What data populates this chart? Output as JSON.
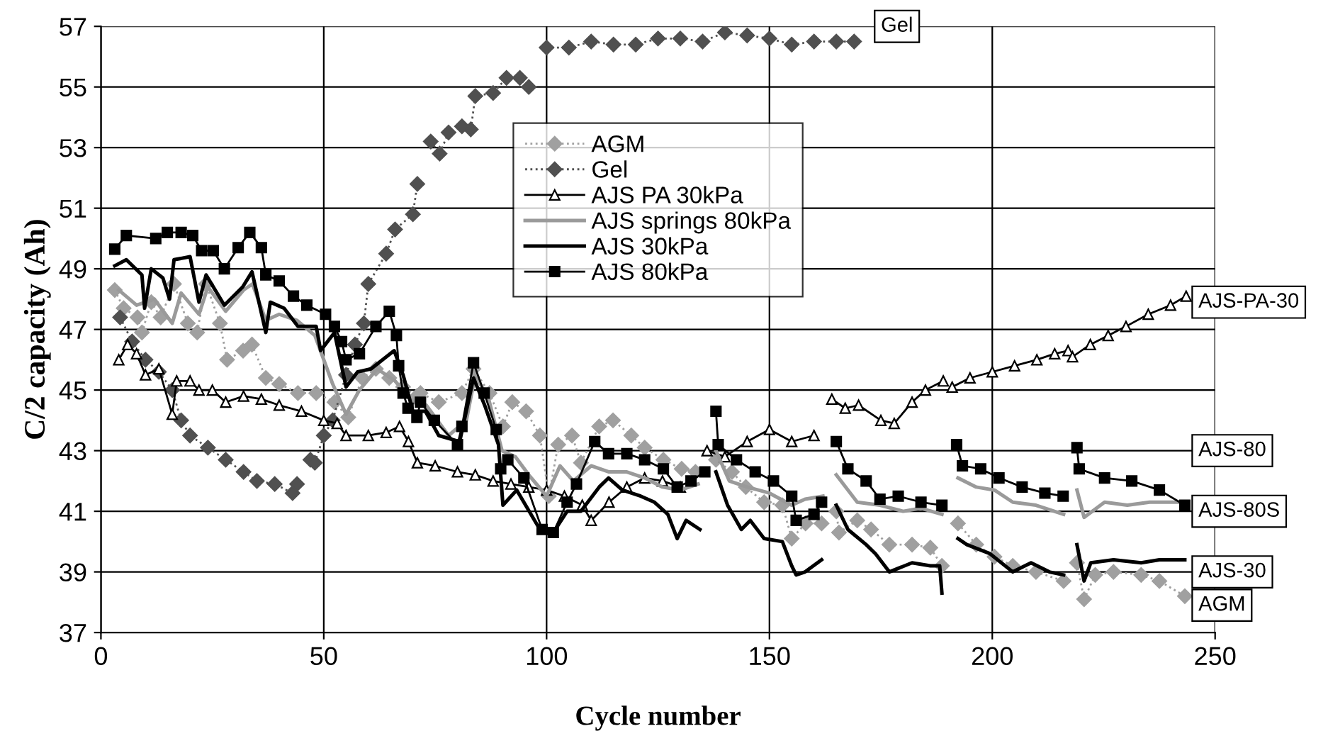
{
  "chart_data": {
    "type": "line",
    "xlabel": "Cycle number",
    "ylabel": "C/2 capacity (Ah)",
    "xlim": [
      0,
      250
    ],
    "xticks": [
      0,
      50,
      100,
      150,
      200,
      250
    ],
    "ylim": [
      37,
      57
    ],
    "yticks": [
      37,
      39,
      41,
      43,
      45,
      47,
      49,
      51,
      53,
      55,
      57
    ],
    "grid": true,
    "legend": "top",
    "series": [
      {
        "name": "AGM",
        "color": "#a0a0a0",
        "marker": "diamond",
        "line_style": "dotted",
        "x": [
          3.1,
          5.1,
          8.2,
          9.2,
          11.3,
          13.4,
          16.4,
          19.5,
          21.6,
          23.6,
          26.7,
          28.3,
          31.9,
          33.9,
          37,
          40,
          44.2,
          48.3,
          52.4,
          55.5,
          58.6,
          61.7,
          64.7,
          67.8,
          70.9,
          71.7,
          75.8,
          81,
          83.6,
          87.2,
          90.2,
          92.3,
          95.4,
          98.5,
          100.5,
          102.6,
          105.7,
          107.7,
          111.8,
          114.9,
          119,
          122,
          126.2,
          130.3,
          133.4,
          136,
          138,
          141.6,
          144.7,
          148.8,
          152.9,
          155,
          158.1,
          161.7,
          163.5,
          165,
          165.6,
          169.7,
          172.8,
          176.9,
          182,
          186.1,
          188.7,
          190.5,
          192.3,
          196.4,
          200.5,
          204.6,
          209.8,
          216,
          217.5,
          219,
          220.6,
          223.1,
          227.2,
          233.4,
          237.5,
          243.2
        ],
        "values": [
          48.3,
          47.7,
          47.4,
          46.9,
          47.9,
          47.4,
          48.5,
          47.2,
          46.9,
          48.5,
          47.2,
          46.0,
          46.3,
          46.5,
          45.4,
          45.2,
          44.9,
          44.9,
          44.6,
          44.1,
          45.4,
          45.7,
          45.4,
          45.1,
          44.8,
          44.9,
          44.6,
          44.9,
          45.7,
          44.9,
          43.8,
          44.6,
          44.3,
          43.5,
          41.5,
          43.2,
          43.5,
          42.6,
          43.8,
          44.0,
          43.5,
          43.1,
          42.7,
          42.4,
          42.3,
          null,
          42.7,
          42.3,
          41.8,
          41.3,
          41.2,
          40.1,
          40.6,
          40.6,
          null,
          41.0,
          40.3,
          40.7,
          40.4,
          39.9,
          39.9,
          39.8,
          39.2,
          null,
          40.6,
          39.9,
          39.5,
          39.2,
          39.0,
          38.7,
          null,
          39.3,
          38.1,
          38.9,
          39.0,
          38.9,
          38.7,
          38.2
        ]
      },
      {
        "name": "Gel",
        "color": "#505050",
        "marker": "diamond",
        "line_style": "dotted",
        "x": [
          4.3,
          7,
          10,
          13,
          16,
          18,
          20,
          24,
          28,
          32,
          35,
          39,
          43,
          44,
          46,
          47,
          48,
          50,
          52,
          55,
          57,
          59,
          60,
          64,
          66,
          70,
          71,
          72.5,
          74,
          76,
          78,
          81,
          83,
          84,
          88,
          91,
          94,
          96,
          98,
          100,
          105,
          110,
          115,
          120,
          125,
          130,
          135,
          140,
          145,
          150,
          155,
          160,
          165,
          169
        ],
        "values": [
          47.4,
          46.6,
          46.0,
          45.6,
          45.0,
          44.0,
          43.5,
          43.1,
          42.7,
          42.3,
          42.0,
          41.9,
          41.6,
          41.9,
          null,
          42.7,
          42.6,
          43.5,
          44.0,
          45.5,
          46.5,
          47.2,
          48.5,
          49.5,
          50.3,
          50.8,
          51.8,
          null,
          53.2,
          52.8,
          53.5,
          53.7,
          53.6,
          54.7,
          54.8,
          55.3,
          55.3,
          55.0,
          null,
          56.3,
          56.3,
          56.5,
          56.4,
          56.4,
          56.6,
          56.6,
          56.5,
          56.8,
          56.7,
          56.6,
          56.4,
          56.5,
          56.5,
          56.5
        ]
      },
      {
        "name": "AJS PA 30kPa",
        "color": "#000000",
        "marker": "triangle",
        "line_style": "solid",
        "x": [
          4,
          6,
          8,
          10,
          13,
          16,
          17,
          20,
          22,
          25,
          28,
          32,
          36,
          40,
          45,
          50,
          53,
          55,
          60,
          64,
          67,
          69,
          71,
          75,
          80,
          84,
          88,
          92,
          96,
          100,
          104,
          108,
          110,
          114,
          118,
          122,
          126,
          130,
          132,
          136,
          140,
          145,
          150,
          155,
          160,
          162,
          164,
          167,
          170,
          175,
          178,
          182,
          185,
          189,
          190,
          191,
          195,
          200,
          205,
          210,
          214,
          217,
          217.5,
          218,
          222,
          226,
          230,
          235,
          240,
          243.5
        ],
        "values": [
          46.0,
          46.5,
          46.2,
          45.5,
          45.7,
          44.2,
          45.3,
          45.3,
          45.0,
          45.0,
          44.6,
          44.8,
          44.7,
          44.5,
          44.3,
          44.0,
          43.9,
          43.5,
          43.5,
          43.6,
          43.8,
          43.3,
          42.6,
          42.5,
          42.3,
          42.2,
          42.0,
          41.9,
          41.8,
          41.7,
          41.5,
          41.2,
          40.7,
          41.3,
          41.8,
          42.1,
          42.0,
          41.8,
          null,
          43.0,
          42.8,
          43.3,
          43.7,
          43.3,
          43.5,
          null,
          44.7,
          44.4,
          44.5,
          44.0,
          43.9,
          44.6,
          45.0,
          45.3,
          null,
          45.1,
          45.4,
          45.6,
          45.8,
          46.0,
          46.2,
          46.3,
          null,
          46.1,
          46.5,
          46.8,
          47.1,
          47.5,
          47.8,
          48.1
        ]
      },
      {
        "name": "AJS springs 80kPa",
        "color": "#9a9a9a",
        "marker": "none",
        "line_style": "solid",
        "x": [
          4,
          8,
          12,
          16,
          18,
          22,
          24,
          28,
          32,
          34,
          37,
          40,
          44,
          48,
          52,
          55,
          58,
          62,
          66,
          70,
          73,
          78,
          82,
          84,
          87,
          90,
          93,
          96,
          100,
          103,
          106,
          110,
          114,
          118,
          122,
          126,
          130,
          134,
          136,
          138,
          141,
          145,
          150,
          155,
          158,
          162,
          163.5,
          165,
          169.7,
          174.8,
          180,
          184,
          188.7,
          190.5,
          192.3,
          196.4,
          200.5,
          204.6,
          209.8,
          216,
          217.5,
          219,
          220.6,
          225.2,
          230.3,
          235.3,
          243.2
        ],
        "values": [
          48.3,
          47.8,
          48.0,
          47.2,
          48.2,
          47.5,
          48.4,
          47.6,
          48.3,
          48.5,
          47.3,
          47.5,
          47.3,
          46.8,
          45.2,
          44.2,
          45.0,
          45.7,
          45.3,
          44.6,
          44.5,
          43.5,
          44.0,
          45.5,
          44.7,
          43.0,
          42.8,
          42.2,
          41.5,
          42.5,
          42.0,
          42.5,
          42.3,
          42.3,
          42.1,
          41.8,
          41.7,
          41.9,
          null,
          43.0,
          42.0,
          41.8,
          41.6,
          41.2,
          41.4,
          41.5,
          null,
          42.2,
          41.3,
          41.2,
          41.0,
          41.1,
          40.9,
          null,
          42.1,
          41.8,
          41.7,
          41.3,
          41.2,
          40.9,
          null,
          41.7,
          40.8,
          41.3,
          41.2,
          41.3,
          41.3
        ]
      },
      {
        "name": "AJS 30kPa",
        "color": "#000000",
        "marker": "none",
        "line_style": "solid",
        "x": [
          3.1,
          5.7,
          9.2,
          9.8,
          11.3,
          13.9,
          15.4,
          16.4,
          20,
          22,
          23.6,
          27.7,
          31.8,
          33.9,
          37,
          38,
          41.1,
          44.2,
          48.3,
          49.3,
          52.4,
          55,
          57.6,
          60.6,
          65.8,
          67.8,
          70,
          72.8,
          75.8,
          80.5,
          83.6,
          86.1,
          89.2,
          90.2,
          93.3,
          98.5,
          101.5,
          104.6,
          107.7,
          111.8,
          113.9,
          117,
          121.1,
          124.2,
          127.2,
          129.3,
          131.3,
          134.4,
          136,
          138,
          140.6,
          143.7,
          145.7,
          148.8,
          152.9,
          155,
          156,
          158,
          161.7,
          163.5,
          165,
          167.6,
          171.7,
          173.8,
          176.9,
          182,
          186.1,
          188.2,
          188.7,
          190.5,
          192.3,
          194.3,
          199.5,
          204.6,
          208.7,
          212.8,
          216,
          217.5,
          219,
          220.6,
          222.1,
          227.2,
          233.4,
          237.5,
          243.2
        ],
        "values": [
          49.1,
          49.3,
          48.8,
          47.7,
          49.0,
          48.7,
          48.0,
          49.3,
          49.4,
          47.9,
          48.8,
          47.8,
          48.4,
          48.9,
          46.9,
          47.9,
          47.7,
          47.1,
          47.1,
          46.3,
          46.9,
          45.1,
          45.6,
          45.7,
          46.3,
          45.5,
          44.3,
          44.3,
          43.5,
          43.3,
          45.4,
          44.5,
          43.2,
          41.2,
          41.7,
          40.4,
          40.3,
          41.0,
          41.0,
          41.8,
          42.1,
          41.7,
          41.5,
          41.3,
          40.9,
          40.1,
          40.7,
          40.4,
          null,
          42.3,
          41.2,
          40.4,
          40.7,
          40.1,
          40.0,
          39.2,
          38.9,
          39.0,
          39.4,
          null,
          41.2,
          40.4,
          39.9,
          39.6,
          39.0,
          39.3,
          39.2,
          39.2,
          38.3,
          null,
          40.1,
          39.9,
          39.6,
          39.0,
          39.3,
          39.0,
          38.9,
          null,
          39.9,
          38.7,
          39.3,
          39.4,
          39.3,
          39.4,
          39.4
        ]
      },
      {
        "name": "AJS 80kPa",
        "color": "#000000",
        "marker": "square",
        "line_style": "solid",
        "x": [
          3.1,
          5.7,
          12.3,
          14.9,
          18,
          20.6,
          22.6,
          25.2,
          27.7,
          30.8,
          33.4,
          36,
          37,
          40,
          43.2,
          46.2,
          50.4,
          52.4,
          54,
          55,
          58,
          61.7,
          64.7,
          66.3,
          66.8,
          67.8,
          68.9,
          70.9,
          71.7,
          74.8,
          80,
          81,
          83.6,
          86,
          88.7,
          89.7,
          91.3,
          94.9,
          99,
          101.5,
          104.6,
          106.7,
          110.8,
          113.9,
          118,
          122,
          126.2,
          129.3,
          132.4,
          135.5,
          137,
          138,
          138.5,
          142.6,
          146.8,
          150.9,
          155,
          156,
          160,
          161.7,
          163.5,
          165,
          167.6,
          171.7,
          174.8,
          178.9,
          184,
          188.7,
          190.5,
          192,
          193.3,
          197.4,
          201.5,
          206.7,
          211.8,
          215.9,
          217.5,
          219,
          219.5,
          225.2,
          231.3,
          237.5,
          243.2
        ],
        "values": [
          49.65,
          50.1,
          50.0,
          50.2,
          50.2,
          50.1,
          49.6,
          49.6,
          49.0,
          49.7,
          50.2,
          49.7,
          48.8,
          48.6,
          48.1,
          47.8,
          47.5,
          47.1,
          46.6,
          46.0,
          46.2,
          47.1,
          47.6,
          46.8,
          45.8,
          44.9,
          44.4,
          44.1,
          44.6,
          44.0,
          43.2,
          43.8,
          45.9,
          44.9,
          43.7,
          42.4,
          42.7,
          42.1,
          40.4,
          40.3,
          41.3,
          41.9,
          43.3,
          42.9,
          42.9,
          42.7,
          42.4,
          41.8,
          42.0,
          42.3,
          null,
          44.3,
          43.2,
          42.7,
          42.3,
          42.0,
          41.5,
          40.7,
          40.9,
          41.3,
          null,
          43.3,
          42.4,
          42.0,
          41.4,
          41.5,
          41.3,
          41.2,
          null,
          43.2,
          42.5,
          42.4,
          42.1,
          41.8,
          41.6,
          41.5,
          null,
          43.1,
          42.4,
          42.1,
          42.0,
          41.7,
          41.2
        ]
      }
    ],
    "annotations": [
      "Gel",
      "AJS-PA-30",
      "AJS-80",
      "AJS-80S",
      "AJS-30",
      "AGM"
    ]
  }
}
